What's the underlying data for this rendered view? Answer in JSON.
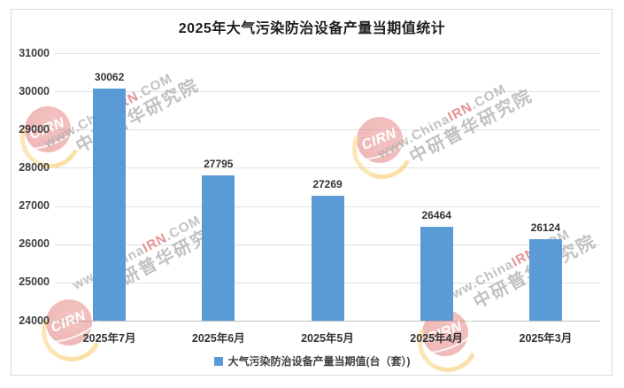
{
  "chart_data": {
    "type": "bar",
    "title": "2025年大气污染防治设备产量当期值统计",
    "categories": [
      "2025年7月",
      "2025年6月",
      "2025年5月",
      "2025年4月",
      "2025年3月"
    ],
    "values": [
      30062,
      27795,
      27269,
      26464,
      26124
    ],
    "series_name": "大气污染防治设备产量当期值(台（套）)",
    "ylim": [
      24000,
      31000
    ],
    "yticks": [
      24000,
      25000,
      26000,
      27000,
      28000,
      29000,
      30000,
      31000
    ],
    "grid": true,
    "legend_position": "bottom",
    "bar_color": "#5B9BD5",
    "xlabel": "",
    "ylabel": ""
  },
  "legend": {
    "label": "大气污染防治设备产量当期值(台（套）)"
  },
  "watermark": {
    "brand_prefix": "www.China",
    "brand_accent": "IRN",
    "brand_suffix": ".COM",
    "brand_cn": "中研普华研究院",
    "logo_text": "CIRN"
  }
}
